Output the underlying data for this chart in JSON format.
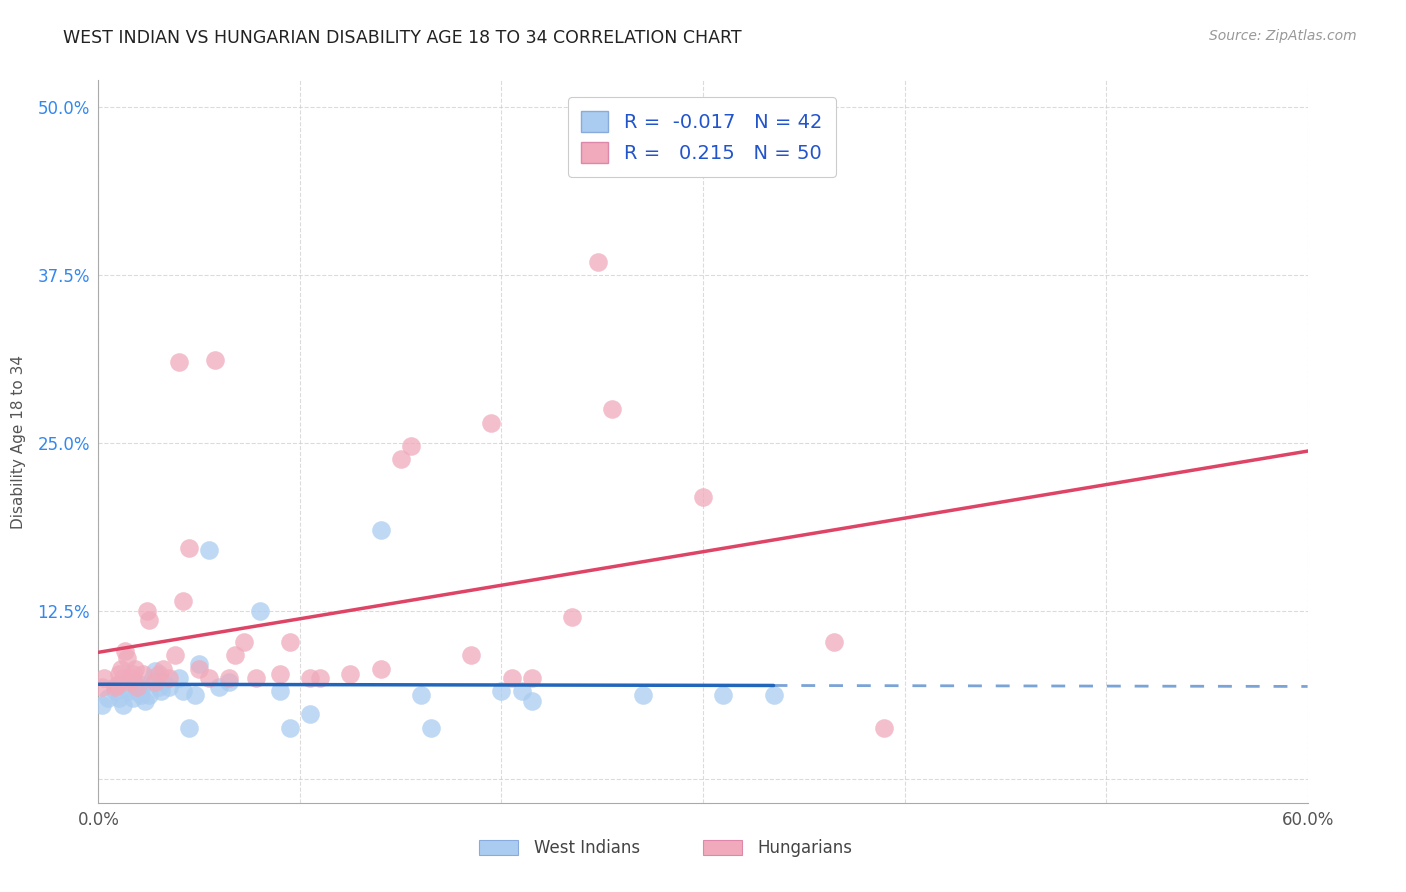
{
  "title": "WEST INDIAN VS HUNGARIAN DISABILITY AGE 18 TO 34 CORRELATION CHART",
  "source": "Source: ZipAtlas.com",
  "ylabel": "Disability Age 18 to 34",
  "xlim": [
    0.0,
    0.6
  ],
  "ylim": [
    -0.018,
    0.52
  ],
  "xticks": [
    0.0,
    0.1,
    0.2,
    0.3,
    0.4,
    0.5,
    0.6
  ],
  "xticklabels": [
    "0.0%",
    "",
    "",
    "",
    "",
    "",
    "60.0%"
  ],
  "yticks": [
    0.0,
    0.125,
    0.25,
    0.375,
    0.5
  ],
  "yticklabels": [
    "",
    "12.5%",
    "25.0%",
    "37.5%",
    "50.0%"
  ],
  "background_color": "#ffffff",
  "grid_color": "#cccccc",
  "west_indian_color": "#aaccf0",
  "hungarian_color": "#f0aabb",
  "west_indian_line_color": "#2266bb",
  "hungarian_line_color": "#dd4466",
  "label1": "West Indians",
  "label2": "Hungarians",
  "west_indian_R": -0.017,
  "west_indian_N": 42,
  "hungarian_R": 0.215,
  "hungarian_N": 50,
  "west_indian_x": [
    0.002,
    0.005,
    0.008,
    0.01,
    0.01,
    0.012,
    0.015,
    0.017,
    0.018,
    0.019,
    0.02,
    0.021,
    0.022,
    0.023,
    0.025,
    0.027,
    0.028,
    0.03,
    0.031,
    0.032,
    0.035,
    0.04,
    0.042,
    0.045,
    0.048,
    0.05,
    0.055,
    0.06,
    0.065,
    0.08,
    0.09,
    0.095,
    0.105,
    0.14,
    0.16,
    0.165,
    0.2,
    0.21,
    0.215,
    0.27,
    0.31,
    0.335
  ],
  "west_indian_y": [
    0.055,
    0.06,
    0.065,
    0.06,
    0.07,
    0.055,
    0.065,
    0.06,
    0.07,
    0.065,
    0.068,
    0.062,
    0.07,
    0.058,
    0.062,
    0.075,
    0.08,
    0.068,
    0.065,
    0.072,
    0.068,
    0.075,
    0.065,
    0.038,
    0.062,
    0.085,
    0.17,
    0.068,
    0.072,
    0.125,
    0.065,
    0.038,
    0.048,
    0.185,
    0.062,
    0.038,
    0.065,
    0.065,
    0.058,
    0.062,
    0.062,
    0.062
  ],
  "hungarian_x": [
    0.002,
    0.003,
    0.008,
    0.009,
    0.01,
    0.011,
    0.012,
    0.013,
    0.014,
    0.015,
    0.016,
    0.017,
    0.018,
    0.019,
    0.022,
    0.024,
    0.025,
    0.028,
    0.03,
    0.032,
    0.035,
    0.038,
    0.04,
    0.042,
    0.045,
    0.05,
    0.055,
    0.058,
    0.065,
    0.068,
    0.072,
    0.078,
    0.09,
    0.095,
    0.105,
    0.11,
    0.125,
    0.14,
    0.15,
    0.155,
    0.185,
    0.195,
    0.205,
    0.215,
    0.235,
    0.248,
    0.255,
    0.3,
    0.365,
    0.39
  ],
  "hungarian_y": [
    0.068,
    0.075,
    0.068,
    0.07,
    0.078,
    0.082,
    0.075,
    0.095,
    0.09,
    0.072,
    0.075,
    0.078,
    0.082,
    0.068,
    0.078,
    0.125,
    0.118,
    0.072,
    0.078,
    0.082,
    0.075,
    0.092,
    0.31,
    0.132,
    0.172,
    0.082,
    0.075,
    0.312,
    0.075,
    0.092,
    0.102,
    0.075,
    0.078,
    0.102,
    0.075,
    0.075,
    0.078,
    0.082,
    0.238,
    0.248,
    0.092,
    0.265,
    0.075,
    0.075,
    0.12,
    0.385,
    0.275,
    0.21,
    0.102,
    0.038
  ]
}
